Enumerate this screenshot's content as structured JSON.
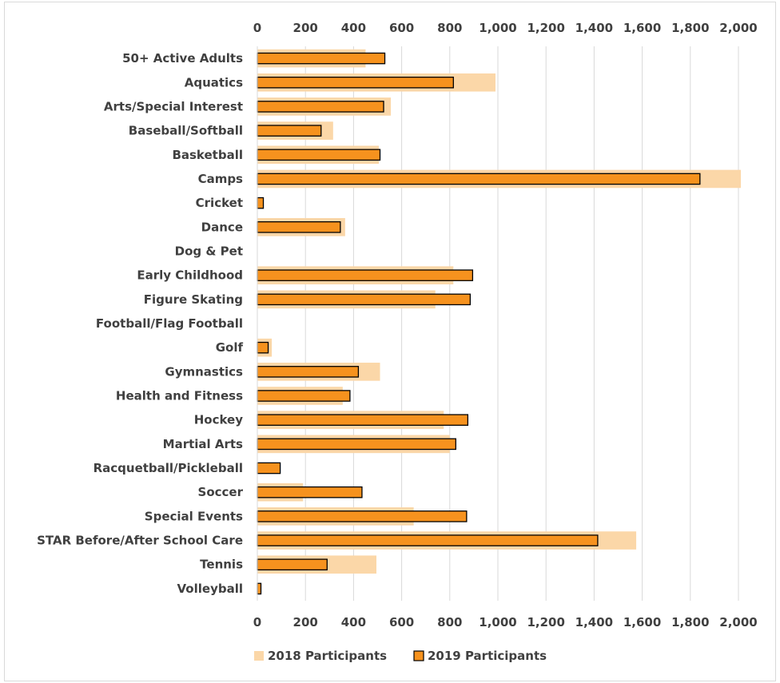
{
  "chart_data": {
    "type": "bar",
    "orientation": "horizontal",
    "categories": [
      "50+ Active Adults",
      "Aquatics",
      "Arts/Special Interest",
      "Baseball/Softball",
      "Basketball",
      "Camps",
      "Cricket",
      "Dance",
      "Dog & Pet",
      "Early Childhood",
      "Figure Skating",
      "Football/Flag Football",
      "Golf",
      "Gymnastics",
      "Health and Fitness",
      "Hockey",
      "Martial Arts",
      "Racquetball/Pickleball",
      "Soccer",
      "Special Events",
      "STAR Before/After School Care",
      "Tennis",
      "Volleyball"
    ],
    "series": [
      {
        "name": "2018 Participants",
        "color": "#fbd7a8",
        "values": [
          450,
          990,
          555,
          315,
          505,
          2010,
          0,
          365,
          0,
          815,
          740,
          0,
          60,
          510,
          355,
          775,
          800,
          0,
          190,
          650,
          1575,
          495,
          0
        ]
      },
      {
        "name": "2019 Participants",
        "color": "#f6921e",
        "values": [
          530,
          815,
          525,
          265,
          510,
          1840,
          25,
          345,
          0,
          895,
          885,
          0,
          45,
          420,
          385,
          875,
          825,
          95,
          435,
          870,
          1415,
          290,
          15
        ]
      }
    ],
    "xlim": [
      0,
      2000
    ],
    "xticks": [
      "0",
      "200",
      "400",
      "600",
      "800",
      "1,000",
      "1,200",
      "1,400",
      "1,600",
      "1,800",
      "2,000"
    ],
    "xaxis_position": "top and bottom",
    "grid": true,
    "legend": {
      "position": "bottom",
      "entries": [
        "2018 Participants",
        "2019 Participants"
      ]
    },
    "title": "",
    "xlabel": "",
    "ylabel": ""
  }
}
